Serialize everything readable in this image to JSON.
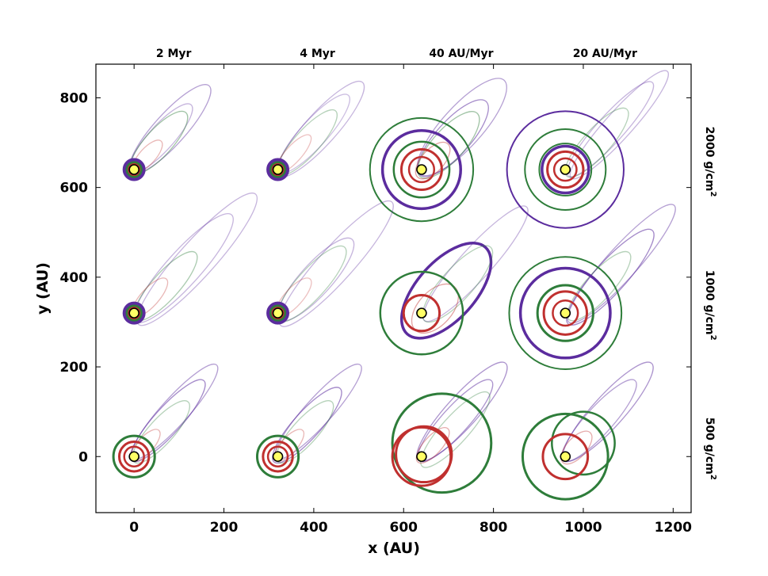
{
  "chart_data": {
    "type": "scatter",
    "xlabel": "x (AU)",
    "ylabel": "y (AU)",
    "xlim": [
      -85,
      1240
    ],
    "ylim": [
      -125,
      875
    ],
    "xticks": [
      0,
      200,
      400,
      600,
      800,
      1000,
      1200
    ],
    "yticks": [
      0,
      200,
      400,
      600,
      800
    ],
    "x_tick_labels": [
      "0",
      "200",
      "400",
      "600",
      "800",
      "1000",
      "1200"
    ],
    "y_tick_labels": [
      "0",
      "200",
      "400",
      "600",
      "800"
    ],
    "grid": false,
    "column_titles": [
      "2 Myr",
      "4 Myr",
      "40 AU/Myr",
      "20 AU/Myr"
    ],
    "row_labels": [
      {
        "main": "2000 g/cm",
        "sup": "2"
      },
      {
        "main": "1000 g/cm",
        "sup": "2"
      },
      {
        "main": "500 g/cm",
        "sup": "2"
      }
    ],
    "panel_centers_x": [
      0,
      320,
      640,
      960
    ],
    "panel_centers_y": [
      640,
      320,
      0
    ],
    "colors": {
      "purple": "#5b2c9e",
      "green": "#2e7d3a",
      "red": "#c0302f",
      "star_fill": "#ffff66",
      "star_edge": "#000000"
    },
    "series": [
      {
        "col": 0,
        "row": 0,
        "circles": [
          {
            "color": "purple",
            "r": 22,
            "w": 4
          },
          {
            "color": "purple",
            "r": 19,
            "w": 3
          },
          {
            "color": "green",
            "r": 16,
            "w": 3
          },
          {
            "color": "red",
            "r": 12,
            "w": 2.5
          },
          {
            "color": "red",
            "r": 8,
            "w": 2
          }
        ],
        "ellipses": [
          {
            "color": "purple",
            "dx": 80,
            "dy": 90,
            "a": 130,
            "b": 35,
            "alpha": 0.45
          },
          {
            "color": "purple",
            "dx": 60,
            "dy": 70,
            "a": 100,
            "b": 28,
            "alpha": 0.35
          },
          {
            "color": "green",
            "dx": 55,
            "dy": 60,
            "a": 90,
            "b": 30,
            "alpha": 0.45
          },
          {
            "color": "red",
            "dx": 30,
            "dy": 30,
            "a": 45,
            "b": 18,
            "alpha": 0.35
          }
        ]
      },
      {
        "col": 1,
        "row": 0,
        "circles": [
          {
            "color": "purple",
            "r": 22,
            "w": 4
          },
          {
            "color": "purple",
            "r": 19,
            "w": 3
          },
          {
            "color": "green",
            "r": 16,
            "w": 3
          },
          {
            "color": "red",
            "r": 12,
            "w": 2.5
          },
          {
            "color": "red",
            "r": 8,
            "w": 2
          }
        ],
        "ellipses": [
          {
            "color": "purple",
            "dx": 95,
            "dy": 90,
            "a": 140,
            "b": 35,
            "alpha": 0.35
          },
          {
            "color": "purple",
            "dx": 80,
            "dy": 80,
            "a": 115,
            "b": 30,
            "alpha": 0.3
          },
          {
            "color": "green",
            "dx": 65,
            "dy": 60,
            "a": 95,
            "b": 28,
            "alpha": 0.35
          },
          {
            "color": "red",
            "dx": 35,
            "dy": 35,
            "a": 55,
            "b": 18,
            "alpha": 0.3
          }
        ]
      },
      {
        "col": 2,
        "row": 0,
        "circles": [
          {
            "color": "green",
            "r": 115,
            "w": 2
          },
          {
            "color": "purple",
            "r": 87,
            "w": 3.5
          },
          {
            "color": "green",
            "r": 62,
            "w": 2.5
          },
          {
            "color": "red",
            "r": 45,
            "w": 3
          },
          {
            "color": "red",
            "r": 28,
            "w": 2.5
          }
        ],
        "ellipses": [
          {
            "color": "purple",
            "dx": 90,
            "dy": 95,
            "a": 140,
            "b": 45,
            "alpha": 0.45
          },
          {
            "color": "purple",
            "dx": 70,
            "dy": 70,
            "a": 110,
            "b": 38,
            "alpha": 0.55
          },
          {
            "color": "green",
            "dx": 60,
            "dy": 55,
            "a": 95,
            "b": 35,
            "alpha": 0.45
          },
          {
            "color": "red",
            "dx": 25,
            "dy": 20,
            "a": 50,
            "b": 25,
            "alpha": 0.45
          }
        ]
      },
      {
        "col": 3,
        "row": 0,
        "circles": [
          {
            "color": "purple",
            "r": 130,
            "w": 2
          },
          {
            "color": "green",
            "r": 90,
            "w": 2
          },
          {
            "color": "green",
            "r": 58,
            "w": 2
          },
          {
            "color": "purple",
            "r": 52,
            "w": 3.5
          },
          {
            "color": "red",
            "r": 40,
            "w": 3
          },
          {
            "color": "red",
            "r": 25,
            "w": 2.5
          }
        ],
        "ellipses": [
          {
            "color": "purple",
            "dx": 120,
            "dy": 100,
            "a": 160,
            "b": 30,
            "alpha": 0.35
          },
          {
            "color": "purple",
            "dx": 100,
            "dy": 90,
            "a": 140,
            "b": 30,
            "alpha": 0.35
          },
          {
            "color": "green",
            "dx": 70,
            "dy": 60,
            "a": 100,
            "b": 30,
            "alpha": 0.35
          }
        ]
      },
      {
        "col": 0,
        "row": 1,
        "circles": [
          {
            "color": "purple",
            "r": 22,
            "w": 4
          },
          {
            "color": "purple",
            "r": 19,
            "w": 3
          },
          {
            "color": "green",
            "r": 16,
            "w": 3
          },
          {
            "color": "red",
            "r": 12,
            "w": 2.5
          },
          {
            "color": "red",
            "r": 8,
            "w": 2
          }
        ],
        "ellipses": [
          {
            "color": "purple",
            "dx": 140,
            "dy": 120,
            "a": 195,
            "b": 40,
            "alpha": 0.35
          },
          {
            "color": "purple",
            "dx": 110,
            "dy": 100,
            "a": 160,
            "b": 38,
            "alpha": 0.35
          },
          {
            "color": "green",
            "dx": 70,
            "dy": 60,
            "a": 100,
            "b": 30,
            "alpha": 0.4
          },
          {
            "color": "red",
            "dx": 35,
            "dy": 35,
            "a": 55,
            "b": 20,
            "alpha": 0.35
          }
        ]
      },
      {
        "col": 1,
        "row": 1,
        "circles": [
          {
            "color": "purple",
            "r": 22,
            "w": 4
          },
          {
            "color": "purple",
            "r": 19,
            "w": 3
          },
          {
            "color": "green",
            "r": 16,
            "w": 3
          },
          {
            "color": "red",
            "r": 12,
            "w": 2.5
          },
          {
            "color": "red",
            "r": 8,
            "w": 2
          }
        ],
        "ellipses": [
          {
            "color": "purple",
            "dx": 130,
            "dy": 110,
            "a": 185,
            "b": 38,
            "alpha": 0.35
          },
          {
            "color": "purple",
            "dx": 85,
            "dy": 75,
            "a": 120,
            "b": 35,
            "alpha": 0.35
          },
          {
            "color": "green",
            "dx": 75,
            "dy": 65,
            "a": 110,
            "b": 32,
            "alpha": 0.35
          },
          {
            "color": "red",
            "dx": 35,
            "dy": 35,
            "a": 55,
            "b": 20,
            "alpha": 0.3
          }
        ]
      },
      {
        "col": 2,
        "row": 1,
        "circles": [
          {
            "color": "green",
            "r": 92,
            "w": 2.5
          },
          {
            "color": "red",
            "r": 40,
            "w": 3
          }
        ],
        "ellipses": [
          {
            "color": "purple",
            "dx": 120,
            "dy": 110,
            "a": 170,
            "b": 35,
            "alpha": 0.35
          },
          {
            "color": "purple",
            "dx": 55,
            "dy": 50,
            "a": 130,
            "b": 65,
            "alpha": 1.0,
            "w": 3.5
          },
          {
            "color": "green",
            "dx": 80,
            "dy": 65,
            "a": 110,
            "b": 35,
            "alpha": 0.35
          },
          {
            "color": "red",
            "dx": 30,
            "dy": 10,
            "a": 65,
            "b": 38,
            "alpha": 0.45
          }
        ]
      },
      {
        "col": 3,
        "row": 1,
        "circles": [
          {
            "color": "green",
            "r": 125,
            "w": 2
          },
          {
            "color": "purple",
            "r": 100,
            "w": 3.5
          },
          {
            "color": "green",
            "r": 62,
            "w": 3
          },
          {
            "color": "red",
            "r": 48,
            "w": 3
          },
          {
            "color": "red",
            "r": 28,
            "w": 2.5
          }
        ],
        "ellipses": [
          {
            "color": "purple",
            "dx": 125,
            "dy": 110,
            "a": 175,
            "b": 35,
            "alpha": 0.45
          },
          {
            "color": "purple",
            "dx": 100,
            "dy": 80,
            "a": 140,
            "b": 35,
            "alpha": 0.55
          },
          {
            "color": "green",
            "dx": 75,
            "dy": 60,
            "a": 100,
            "b": 30,
            "alpha": 0.35
          }
        ]
      },
      {
        "col": 0,
        "row": 2,
        "circles": [
          {
            "color": "green",
            "r": 46,
            "w": 3
          },
          {
            "color": "red",
            "r": 33,
            "w": 3
          },
          {
            "color": "red",
            "r": 22,
            "w": 2.5
          }
        ],
        "ellipses": [
          {
            "color": "purple",
            "dx": 90,
            "dy": 100,
            "a": 140,
            "b": 30,
            "alpha": 0.45
          },
          {
            "color": "purple",
            "dx": 75,
            "dy": 80,
            "a": 120,
            "b": 30,
            "alpha": 0.55
          },
          {
            "color": "green",
            "dx": 60,
            "dy": 55,
            "a": 90,
            "b": 28,
            "alpha": 0.35
          },
          {
            "color": "red",
            "dx": 25,
            "dy": 25,
            "a": 45,
            "b": 18,
            "alpha": 0.35
          }
        ]
      },
      {
        "col": 1,
        "row": 2,
        "circles": [
          {
            "color": "green",
            "r": 46,
            "w": 3
          },
          {
            "color": "red",
            "r": 33,
            "w": 3
          },
          {
            "color": "red",
            "r": 22,
            "w": 2.5
          }
        ],
        "ellipses": [
          {
            "color": "purple",
            "dx": 90,
            "dy": 100,
            "a": 140,
            "b": 30,
            "alpha": 0.45
          },
          {
            "color": "purple",
            "dx": 65,
            "dy": 70,
            "a": 110,
            "b": 30,
            "alpha": 0.55
          },
          {
            "color": "green",
            "dx": 60,
            "dy": 55,
            "a": 90,
            "b": 28,
            "alpha": 0.35
          },
          {
            "color": "red",
            "dx": 25,
            "dy": 25,
            "a": 45,
            "b": 18,
            "alpha": 0.35
          }
        ]
      },
      {
        "col": 2,
        "row": 2,
        "circles": [
          {
            "color": "red",
            "r": 65,
            "w": 3
          }
        ],
        "ellipses": [
          {
            "color": "purple",
            "dx": 90,
            "dy": 100,
            "a": 145,
            "b": 35,
            "alpha": 0.5
          },
          {
            "color": "purple",
            "dx": 75,
            "dy": 80,
            "a": 120,
            "b": 30,
            "alpha": 0.5
          },
          {
            "color": "green",
            "dx": 75,
            "dy": 60,
            "a": 110,
            "b": 30,
            "alpha": 0.35
          },
          {
            "color": "red",
            "dx": 25,
            "dy": 25,
            "a": 50,
            "b": 20,
            "alpha": 0.4
          }
        ],
        "offset_circles": [
          {
            "color": "green",
            "ox": 45,
            "oy": 30,
            "r": 110,
            "w": 3
          },
          {
            "color": "red",
            "ox": 5,
            "oy": 5,
            "r": 62,
            "w": 3
          }
        ]
      },
      {
        "col": 3,
        "row": 2,
        "circles": [
          {
            "color": "red",
            "r": 50,
            "w": 3
          }
        ],
        "ellipses": [
          {
            "color": "purple",
            "dx": 95,
            "dy": 100,
            "a": 145,
            "b": 35,
            "alpha": 0.5
          },
          {
            "color": "purple",
            "dx": 75,
            "dy": 80,
            "a": 120,
            "b": 30,
            "alpha": 0.45
          },
          {
            "color": "red",
            "dx": 25,
            "dy": 20,
            "a": 45,
            "b": 22,
            "alpha": 0.4
          }
        ],
        "offset_circles": [
          {
            "color": "green",
            "ox": 40,
            "oy": 30,
            "r": 70,
            "w": 2.5
          },
          {
            "color": "green",
            "ox": 0,
            "oy": 0,
            "r": 95,
            "w": 3
          }
        ]
      }
    ]
  }
}
